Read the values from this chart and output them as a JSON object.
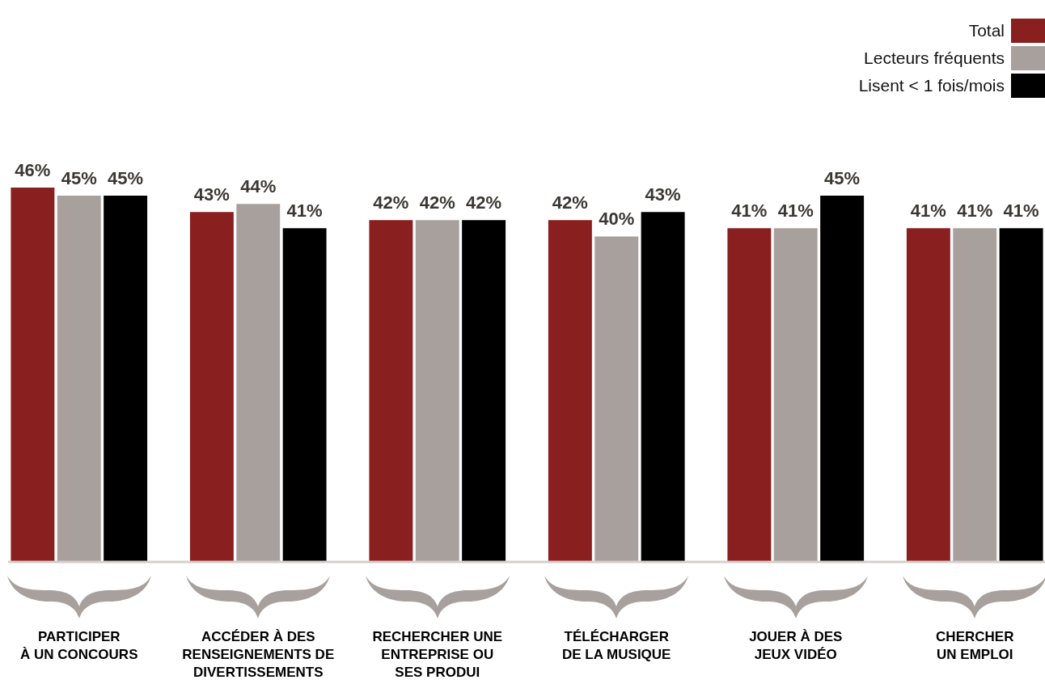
{
  "chart_data": {
    "type": "bar",
    "categories": [
      "PARTICIPER\nÀ UN CONCOURS",
      "ACCÉDER À DES\nRENSEIGNEMENTS DE\nDIVERTISSEMENTS",
      "RECHERCHER UNE\nENTREPRISE OU\nSES PRODUI",
      "TÉLÉCHARGER\nDE LA MUSIQUE",
      "JOUER À DES\nJEUX VIDÉO",
      "CHERCHER\nUN EMPLOI"
    ],
    "series": [
      {
        "name": "Total",
        "color": "#8a1f1f",
        "values": [
          46,
          43,
          42,
          42,
          41,
          41
        ],
        "value_labels": [
          "46%",
          "43%",
          "42%",
          "42%",
          "41%",
          "41%"
        ]
      },
      {
        "name": "Lecteurs fréquents",
        "color": "#a8a09d",
        "values": [
          45,
          44,
          42,
          40,
          41,
          41
        ],
        "value_labels": [
          "45%",
          "44%",
          "42%",
          "40%",
          "41%",
          "41%"
        ]
      },
      {
        "name": "Lisent < 1 fois/mois",
        "color": "#000000",
        "values": [
          45,
          41,
          42,
          43,
          45,
          41
        ],
        "value_labels": [
          "45%",
          "41%",
          "42%",
          "43%",
          "45%",
          "41%"
        ]
      }
    ],
    "legend": "top right",
    "tick_labels": "x"
  }
}
